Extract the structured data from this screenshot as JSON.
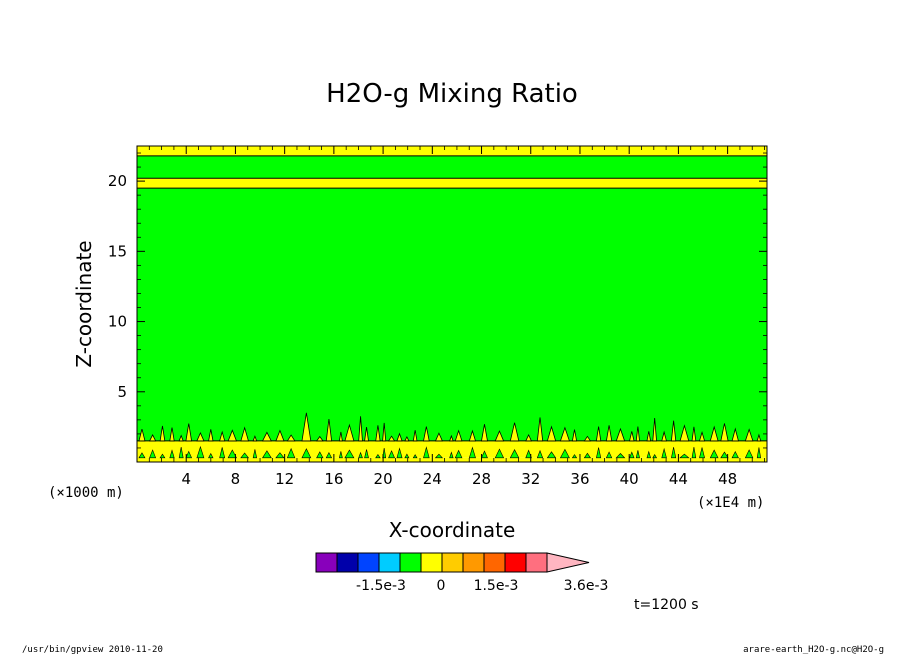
{
  "chart_data": {
    "type": "heatmap",
    "title": "H2O-g Mixing Ratio",
    "xlabel": "X-coordinate",
    "ylabel": "Z-coordinate",
    "x_unit": "(×1E4 m)",
    "y_unit": "(×1000 m)",
    "xlim": [
      0,
      51.2
    ],
    "ylim": [
      0,
      22.5
    ],
    "x_ticks": [
      4,
      8,
      12,
      16,
      20,
      24,
      28,
      32,
      36,
      40,
      44,
      48
    ],
    "x_tick_labels": [
      "4",
      "8",
      "12",
      "16",
      "20",
      "24",
      "28",
      "32",
      "36",
      "40",
      "44",
      "48"
    ],
    "y_ticks": [
      5,
      10,
      15,
      20
    ],
    "y_tick_labels": [
      "5",
      "10",
      "15",
      "20"
    ],
    "layers": [
      {
        "z_from": 0.0,
        "z_to": 0.3,
        "band": "0 to 0.0005",
        "color": "#ffff00"
      },
      {
        "z_from": 0.3,
        "z_to": 1.5,
        "band": "mixed",
        "color": "#ffff00"
      },
      {
        "z_from": 1.5,
        "z_to": 19.5,
        "band": "-0.0005 to 0",
        "color": "#00ff00"
      },
      {
        "z_from": 19.5,
        "z_to": 20.2,
        "band": "0 to 0.0005",
        "color": "#ffff00"
      },
      {
        "z_from": 20.2,
        "z_to": 21.8,
        "band": "-0.0005 to 0",
        "color": "#00ff00"
      },
      {
        "z_from": 21.8,
        "z_to": 22.5,
        "band": "0 to 0.0005",
        "color": "#ffff00"
      }
    ],
    "colorbar": {
      "colors": [
        "#8800bb",
        "#0000aa",
        "#0044ff",
        "#00ccff",
        "#00ff00",
        "#ffff00",
        "#ffcc00",
        "#ff9900",
        "#ff6600",
        "#ff0000",
        "#ff6f7f",
        "#ffb6c1"
      ],
      "labels": [
        "-1.5e-3",
        "0",
        "1.5e-3",
        "3.6e-3"
      ]
    },
    "time_label": "t=1200 s"
  },
  "footer": {
    "left": "/usr/bin/gpview  2010-11-20",
    "right": "arare-earth_H2O-g.nc@H2O-g"
  }
}
